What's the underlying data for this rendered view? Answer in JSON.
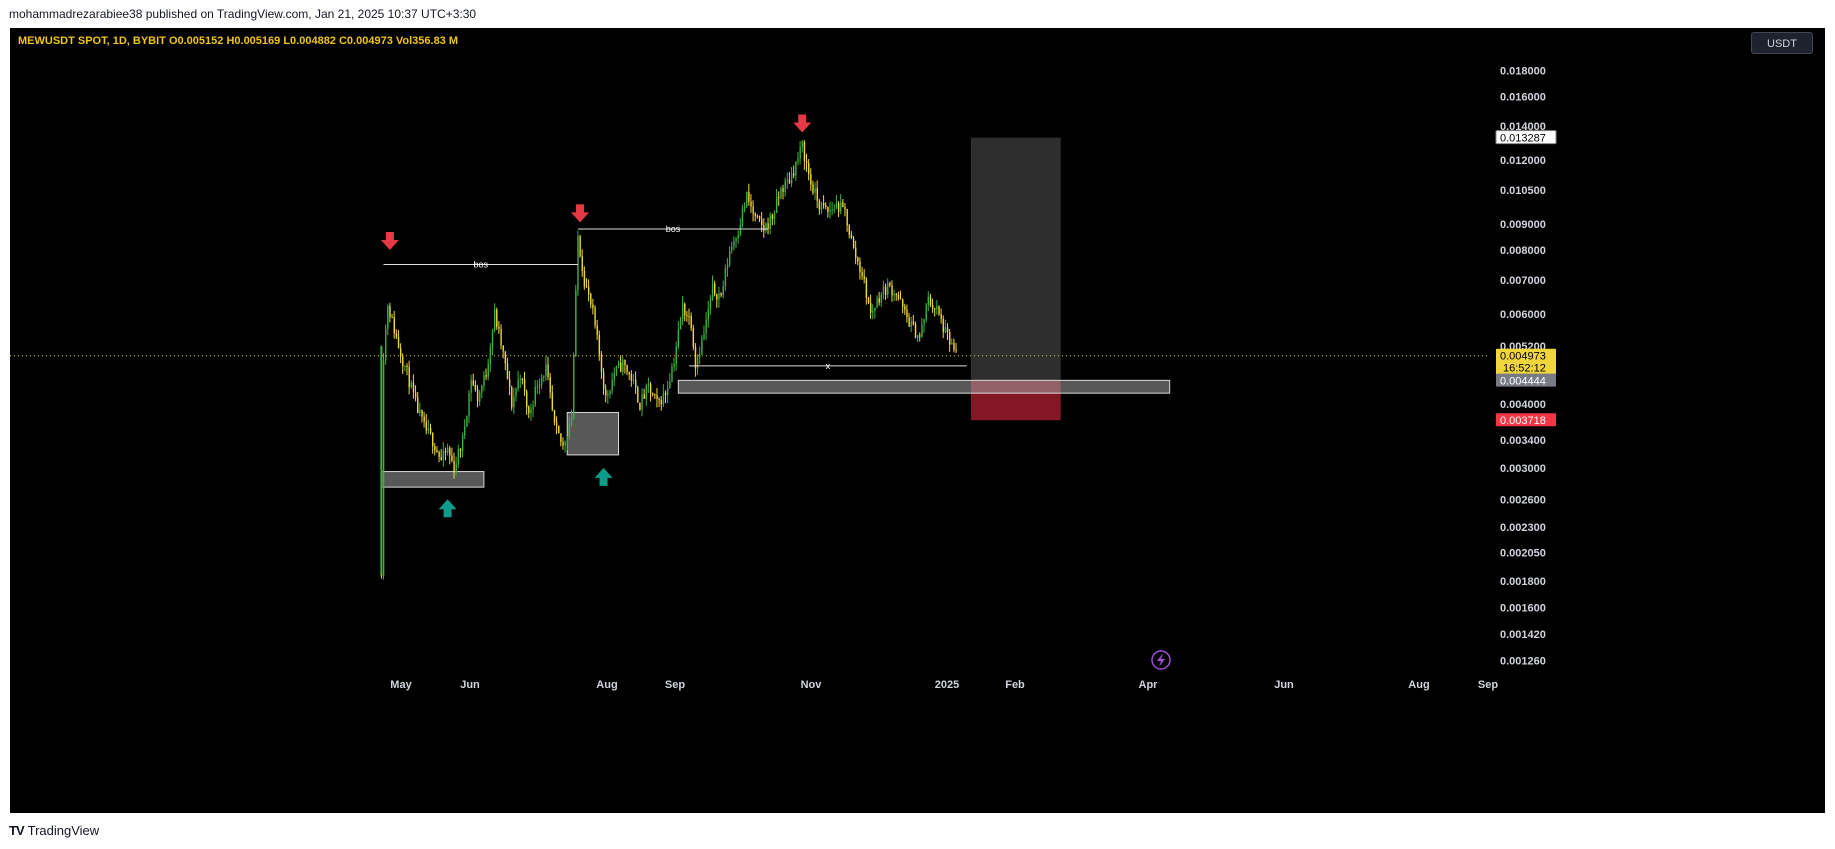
{
  "header": {
    "published_by": "mohammadrezarabiee38 published on TradingView.com, Jan 21, 2025 10:37 UTC+3:30"
  },
  "symbol_bar": {
    "text": "MEWUSDT SPOT, 1D, BYBIT  O0.005152  H0.005169  L0.004882  C0.004973  Vol356.83 M"
  },
  "currency_button": {
    "label": "USDT"
  },
  "footer": {
    "brand": "TradingView",
    "logo_glyph": "TV"
  },
  "chart_data": {
    "type": "line",
    "symbol": "MEWUSDT SPOT",
    "interval": "1D",
    "exchange": "BYBIT",
    "ohlc": {
      "open": 0.005152,
      "high": 0.005169,
      "low": 0.004882,
      "close": 0.004973,
      "volume": "356.83 M"
    },
    "scale": "log",
    "ylim": [
      0.00119,
      0.0199
    ],
    "grid": false,
    "y_ticks": [
      "0.018000",
      "0.016000",
      "0.014000",
      "0.012000",
      "0.010500",
      "0.009000",
      "0.008000",
      "0.007000",
      "0.006000",
      "0.005200",
      "0.004000",
      "0.003400",
      "0.003000",
      "0.002600",
      "0.002300",
      "0.002050",
      "0.001800",
      "0.001600",
      "0.001420",
      "0.001260"
    ],
    "x_ticks": [
      "May",
      "Jun",
      "Aug",
      "Sep",
      "Nov",
      "2025",
      "Feb",
      "Apr",
      "Jun",
      "Aug",
      "Sep"
    ],
    "price_labels": [
      {
        "text": "0.013287",
        "value": 0.013287,
        "bg": "#ffffff",
        "fg": "#000000"
      },
      {
        "text": "0.004973",
        "value": 0.004973,
        "bg": "#f0d63c",
        "fg": "#000000",
        "sub": "16:52:12"
      },
      {
        "text": "0.004444",
        "value": 0.004444,
        "bg": "#787b86",
        "fg": "#ffffff"
      },
      {
        "text": "0.003718",
        "value": 0.003718,
        "bg": "#f23645",
        "fg": "#ffffff"
      }
    ],
    "current_price": 0.004973,
    "series": [
      {
        "points": [
          [
            "2024-04-26",
            0.0019
          ],
          [
            "2024-04-27",
            0.005
          ],
          [
            "2024-04-29",
            0.0063
          ],
          [
            "2024-05-01",
            0.0058
          ],
          [
            "2024-05-04",
            0.0052
          ],
          [
            "2024-05-08",
            0.0046
          ],
          [
            "2024-05-12",
            0.004
          ],
          [
            "2024-05-16",
            0.0036
          ],
          [
            "2024-05-20",
            0.0034
          ],
          [
            "2024-05-24",
            0.0031
          ],
          [
            "2024-05-27",
            0.00325
          ],
          [
            "2024-05-30",
            0.003
          ],
          [
            "2024-06-03",
            0.0034
          ],
          [
            "2024-06-07",
            0.0045
          ],
          [
            "2024-06-10",
            0.0041
          ],
          [
            "2024-06-14",
            0.0046
          ],
          [
            "2024-06-18",
            0.006
          ],
          [
            "2024-06-22",
            0.005
          ],
          [
            "2024-06-26",
            0.004
          ],
          [
            "2024-06-30",
            0.0046
          ],
          [
            "2024-07-04",
            0.0038
          ],
          [
            "2024-07-08",
            0.0044
          ],
          [
            "2024-07-12",
            0.0047
          ],
          [
            "2024-07-16",
            0.0036
          ],
          [
            "2024-07-20",
            0.0033
          ],
          [
            "2024-07-24",
            0.0038
          ],
          [
            "2024-07-27",
            0.0085
          ],
          [
            "2024-07-30",
            0.007
          ],
          [
            "2024-08-03",
            0.006
          ],
          [
            "2024-08-06",
            0.005
          ],
          [
            "2024-08-09",
            0.0041
          ],
          [
            "2024-08-13",
            0.0046
          ],
          [
            "2024-08-17",
            0.0048
          ],
          [
            "2024-08-21",
            0.0045
          ],
          [
            "2024-08-25",
            0.004
          ],
          [
            "2024-08-29",
            0.0043
          ],
          [
            "2024-09-02",
            0.004
          ],
          [
            "2024-09-06",
            0.0042
          ],
          [
            "2024-09-10",
            0.0049
          ],
          [
            "2024-09-14",
            0.0062
          ],
          [
            "2024-09-18",
            0.0058
          ],
          [
            "2024-09-20",
            0.0048
          ],
          [
            "2024-09-24",
            0.0055
          ],
          [
            "2024-09-28",
            0.0067
          ],
          [
            "2024-10-02",
            0.0065
          ],
          [
            "2024-10-06",
            0.008
          ],
          [
            "2024-10-10",
            0.0088
          ],
          [
            "2024-10-14",
            0.0102
          ],
          [
            "2024-10-18",
            0.0092
          ],
          [
            "2024-10-22",
            0.0088
          ],
          [
            "2024-10-26",
            0.0093
          ],
          [
            "2024-10-30",
            0.0105
          ],
          [
            "2024-11-03",
            0.011
          ],
          [
            "2024-11-06",
            0.0118
          ],
          [
            "2024-11-09",
            0.0128
          ],
          [
            "2024-11-13",
            0.0108
          ],
          [
            "2024-11-17",
            0.0098
          ],
          [
            "2024-11-21",
            0.0095
          ],
          [
            "2024-11-25",
            0.0098
          ],
          [
            "2024-11-29",
            0.0095
          ],
          [
            "2024-12-03",
            0.008
          ],
          [
            "2024-12-07",
            0.0072
          ],
          [
            "2024-12-11",
            0.006
          ],
          [
            "2024-12-15",
            0.0065
          ],
          [
            "2024-12-19",
            0.0068
          ],
          [
            "2024-12-23",
            0.0066
          ],
          [
            "2024-12-27",
            0.006
          ],
          [
            "2024-12-31",
            0.0056
          ],
          [
            "2025-01-03",
            0.0054
          ],
          [
            "2025-01-07",
            0.0064
          ],
          [
            "2025-01-11",
            0.0061
          ],
          [
            "2025-01-15",
            0.0055
          ],
          [
            "2025-01-18",
            0.0052
          ],
          [
            "2025-01-20",
            0.004973
          ]
        ]
      }
    ],
    "annotations": {
      "bos": [
        {
          "label": "bos",
          "x1": "2024-04-27",
          "x2": "2024-07-27",
          "y": 0.0075
        },
        {
          "label": "bos",
          "x1": "2024-07-27",
          "x2": "2024-10-24",
          "y": 0.0088
        }
      ],
      "x_line": {
        "label": "x",
        "x1": "2024-09-17",
        "x2": "2025-01-25",
        "y": 0.00475
      },
      "demand_zones": [
        {
          "x1": "2024-04-26",
          "x2": "2024-06-13",
          "y1": 0.00295,
          "y2": 0.00275
        },
        {
          "x1": "2024-07-22",
          "x2": "2024-08-15",
          "y1": 0.00385,
          "y2": 0.00318
        },
        {
          "x1": "2024-09-12",
          "x2": "2025-04-30",
          "y1": 0.00445,
          "y2": 0.0042
        }
      ],
      "long_position": {
        "x1": "2025-01-27",
        "x2": "2025-03-10",
        "entry": 0.004444,
        "target": 0.013287,
        "stop": 0.003718
      },
      "down_arrows": [
        {
          "date": "2024-04-30",
          "price": 0.0083
        },
        {
          "date": "2024-07-28",
          "price": 0.0094
        },
        {
          "date": "2024-11-09",
          "price": 0.0141
        }
      ],
      "up_arrows": [
        {
          "date": "2024-05-27",
          "price": 0.0025
        },
        {
          "date": "2024-08-08",
          "price": 0.00288
        }
      ]
    }
  }
}
